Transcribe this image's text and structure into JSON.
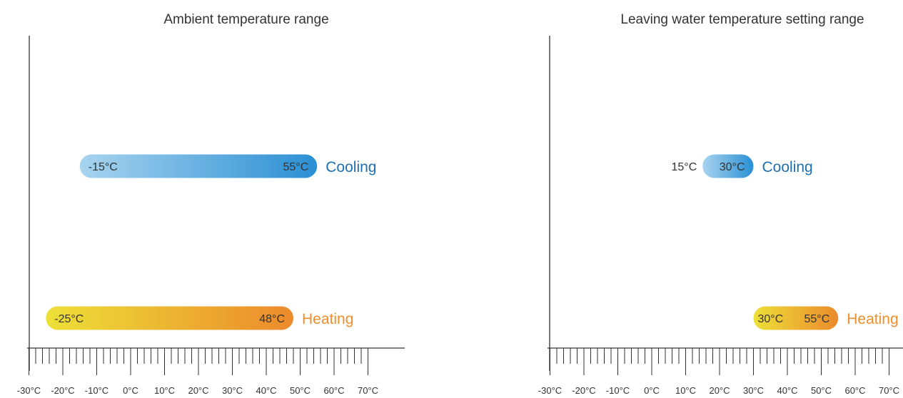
{
  "chart_data": [
    {
      "type": "range-bar",
      "title": "Ambient temperature range",
      "xlabel": "",
      "ylabel": "",
      "unit": "°C",
      "xlim": [
        -30,
        70
      ],
      "ticks": [
        "-30°C",
        "-20°C",
        "-10°C",
        "0°C",
        "10°C",
        "20°C",
        "30°C",
        "40°C",
        "50°C",
        "60°C",
        "70°C"
      ],
      "minor_tick_step": 2,
      "ranges": [
        {
          "name": "Cooling",
          "min": -15,
          "max": 55,
          "min_label": "-15°C",
          "max_label": "55°C",
          "gradient": [
            "#a8d4ef",
            "#2a8fd4"
          ],
          "label_color": "#1f6fb2"
        },
        {
          "name": "Heating",
          "min": -25,
          "max": 48,
          "min_label": "-25°C",
          "max_label": "48°C",
          "gradient": [
            "#ede038",
            "#ec8a2c"
          ],
          "label_color": "#ef8f2b"
        }
      ]
    },
    {
      "type": "range-bar",
      "title": "Leaving water temperature setting range",
      "xlabel": "",
      "ylabel": "",
      "unit": "°C",
      "xlim": [
        -30,
        70
      ],
      "ticks": [
        "-30°C",
        "-20°C",
        "-10°C",
        "0°C",
        "10°C",
        "20°C",
        "30°C",
        "40°C",
        "50°C",
        "60°C",
        "70°C"
      ],
      "minor_tick_step": 2,
      "ranges": [
        {
          "name": "Cooling",
          "min": 15,
          "max": 30,
          "min_label": "15°C",
          "max_label": "30°C",
          "gradient": [
            "#a8d4ef",
            "#2a8fd4"
          ],
          "label_color": "#1f6fb2"
        },
        {
          "name": "Heating",
          "min": 30,
          "max": 55,
          "min_label": "30°C",
          "max_label": "55°C",
          "gradient": [
            "#ede038",
            "#ec8a2c"
          ],
          "label_color": "#ef8f2b"
        }
      ]
    }
  ]
}
